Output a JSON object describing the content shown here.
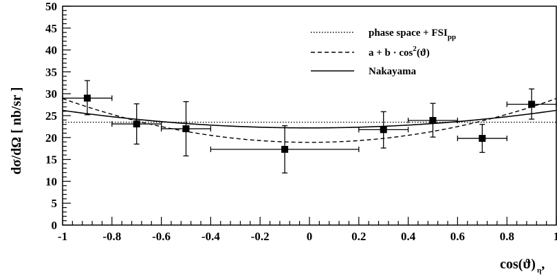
{
  "chart_data": {
    "type": "scatter",
    "xlabel": {
      "main": "cos(ϑ)",
      "sub": "η",
      "tail": ","
    },
    "ylabel": "dσ/dΩ [ nb/sr ]",
    "xlim": [
      -1,
      1
    ],
    "ylim": [
      0,
      50
    ],
    "x_ticks": [
      "-1",
      "-0.8",
      "-0.6",
      "-0.4",
      "-0.2",
      "0",
      "0.2",
      "0.4",
      "0.6",
      "0.8",
      "1"
    ],
    "y_ticks": [
      "0",
      "5",
      "10",
      "15",
      "20",
      "25",
      "30",
      "35",
      "40",
      "45",
      "50"
    ],
    "grid": false,
    "legend_position": "top-right",
    "series": [
      {
        "name": "data",
        "kind": "points",
        "points": [
          {
            "x": -0.9,
            "y": 29.0,
            "xerr": 0.1,
            "yerr_low": 3.8,
            "yerr_high": 4.0
          },
          {
            "x": -0.7,
            "y": 23.1,
            "xerr": 0.1,
            "yerr_low": 4.6,
            "yerr_high": 4.6
          },
          {
            "x": -0.5,
            "y": 22.0,
            "xerr": 0.1,
            "yerr_low": 6.2,
            "yerr_high": 6.2
          },
          {
            "x": -0.1,
            "y": 17.3,
            "xerr": 0.3,
            "yerr_low": 5.4,
            "yerr_high": 5.4
          },
          {
            "x": 0.3,
            "y": 21.8,
            "xerr": 0.1,
            "yerr_low": 4.2,
            "yerr_high": 4.1
          },
          {
            "x": 0.5,
            "y": 23.9,
            "xerr": 0.1,
            "yerr_low": 3.8,
            "yerr_high": 3.9
          },
          {
            "x": 0.7,
            "y": 19.8,
            "xerr": 0.1,
            "yerr_low": 3.2,
            "yerr_high": 3.2
          },
          {
            "x": 0.9,
            "y": 27.6,
            "xerr": 0.1,
            "yerr_low": 3.4,
            "yerr_high": 3.5
          }
        ]
      },
      {
        "name": "phase space + FSI",
        "name_sub": "pp",
        "kind": "curve",
        "style": "dotted",
        "model": "constant",
        "params": {
          "c": 23.5
        }
      },
      {
        "name": "a + b · cos",
        "name_sup": "2",
        "name_tail": "(ϑ)",
        "kind": "curve",
        "style": "dashed",
        "model": "a_plus_b_cos2",
        "params": {
          "a": 18.9,
          "b": 10.0
        }
      },
      {
        "name": "Nakayama",
        "kind": "curve",
        "style": "solid",
        "model": "poly",
        "params": {
          "c0": 22.2,
          "c1": 0.0,
          "c2": 4.0
        }
      }
    ]
  }
}
